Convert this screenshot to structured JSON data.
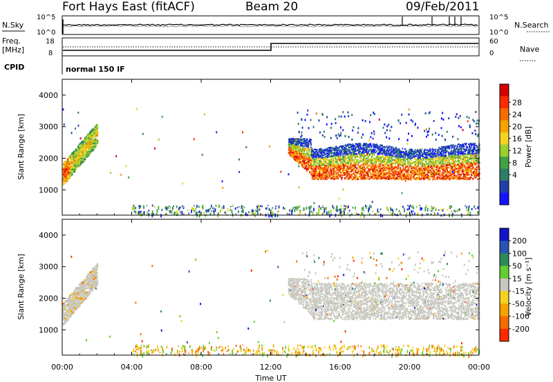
{
  "header": {
    "station": "Fort Hays East (fitACF)",
    "beam": "Beam 20",
    "date": "09/Feb/2011"
  },
  "noise_panel": {
    "left_label": "N.Sky",
    "right_label": "N.Search",
    "left_ticks": [
      "10^5",
      "10^0"
    ],
    "right_ticks": [
      "10^5",
      "10^0"
    ]
  },
  "freq_panel": {
    "left_label_1": "Freq.",
    "left_label_2": "[MHz]",
    "right_label": "Nave",
    "left_ticks": [
      "18",
      "8"
    ],
    "right_ticks": [
      "60",
      "0"
    ]
  },
  "cpid": {
    "label": "CPID",
    "value": "normal 150 IF"
  },
  "chart_data": [
    {
      "type": "heatmap",
      "panel": "power",
      "ylabel": "Slant Range [km]",
      "xlabel": "",
      "y_ticks": [
        "1000",
        "2000",
        "3000",
        "4000"
      ],
      "ylim": [
        200,
        4500
      ],
      "colorbar_label": "Power [dB]",
      "colorbar_ticks": [
        "4",
        "8",
        "12",
        "16",
        "20",
        "24",
        "28"
      ],
      "colorbar_colors": [
        "#1414ff",
        "#2040a8",
        "#2e7d6a",
        "#43a343",
        "#9bd12e",
        "#f5d21f",
        "#f5a300",
        "#f56d00",
        "#ff2a00",
        "#d40000"
      ],
      "echo_regions": [
        {
          "t_start": 0.0,
          "t_end": 2.0,
          "r_low": 1200,
          "r_high": 3400,
          "note": "near-range echoes"
        },
        {
          "t_start": 13.0,
          "t_end": 24.0,
          "r_low": 1300,
          "r_high": 2600,
          "note": "main scatter band"
        },
        {
          "t_start": 4.0,
          "t_end": 13.0,
          "r_low": 200,
          "r_high": 500,
          "note": "ground level scatter"
        }
      ]
    },
    {
      "type": "heatmap",
      "panel": "velocity",
      "ylabel": "Slant Range [km]",
      "xlabel": "Time UT",
      "x_ticks": [
        "00:00",
        "04:00",
        "08:00",
        "12:00",
        "16:00",
        "20:00",
        "00:00"
      ],
      "y_ticks": [
        "1000",
        "2000",
        "3000",
        "4000"
      ],
      "ylim": [
        200,
        4500
      ],
      "colorbar_label": "Velocity [m s⁻¹]",
      "colorbar_ticks": [
        "200",
        "100",
        "50",
        "15",
        "-15",
        "-50",
        "-100",
        "-200"
      ],
      "colorbar_colors": [
        "#1414c8",
        "#2a55b4",
        "#2f8a5a",
        "#66cc33",
        "#c8c8c0",
        "#f5d21f",
        "#f5a300",
        "#f56d00",
        "#ff2a00"
      ],
      "ground_scatter_color": "#c8c8c0"
    }
  ]
}
